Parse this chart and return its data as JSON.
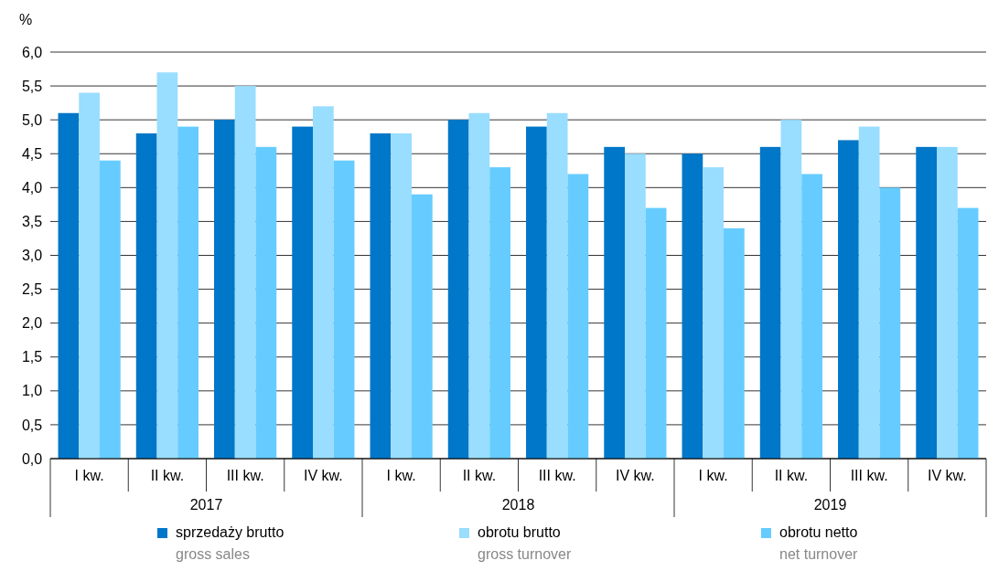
{
  "chart_data": {
    "type": "bar",
    "ylabel": "%",
    "categories": [
      "I kw.",
      "II kw.",
      "III kw.",
      "IV kw.",
      "I kw.",
      "II kw.",
      "III kw.",
      "IV kw.",
      "I kw.",
      "II kw.",
      "III kw.",
      "IV kw."
    ],
    "annotations": [
      "2017",
      "2018",
      "2019"
    ],
    "series": [
      {
        "name": "sprzedaży brutto\ngross sales",
        "color": "#0077c8",
        "values": [
          5.1,
          4.8,
          5.0,
          4.9,
          4.8,
          5.0,
          4.9,
          4.6,
          4.5,
          4.6,
          4.7,
          4.6
        ]
      },
      {
        "name": "obrotu brutto\ngross turnover",
        "color": "#99ddff",
        "values": [
          5.4,
          5.7,
          5.5,
          5.2,
          4.8,
          5.1,
          5.1,
          4.5,
          4.3,
          5.0,
          4.9,
          4.6
        ]
      },
      {
        "name": "obrotu netto\nnet turnover",
        "color": "#66ccff",
        "values": [
          4.4,
          4.9,
          4.6,
          4.4,
          3.9,
          4.3,
          4.2,
          3.7,
          3.4,
          4.2,
          4.0,
          3.7
        ]
      }
    ],
    "ylim": [
      0,
      6
    ],
    "yticks": [
      {
        "value": 0,
        "label": "0,0"
      },
      {
        "value": 0.5,
        "label": "0,5"
      },
      {
        "value": 1,
        "label": "1,0"
      },
      {
        "value": 1.5,
        "label": "1,5"
      },
      {
        "value": 2,
        "label": "2,0"
      },
      {
        "value": 2.5,
        "label": "2,5"
      },
      {
        "value": 3,
        "label": "3,0"
      },
      {
        "value": 3.5,
        "label": "3,5"
      },
      {
        "value": 4,
        "label": "4,0"
      },
      {
        "value": 4.5,
        "label": "4,5"
      },
      {
        "value": 5,
        "label": "5,0"
      },
      {
        "value": 5.5,
        "label": "5,5"
      },
      {
        "value": 6,
        "label": "6,0"
      }
    ],
    "grid": "y",
    "legend": "bottom"
  }
}
